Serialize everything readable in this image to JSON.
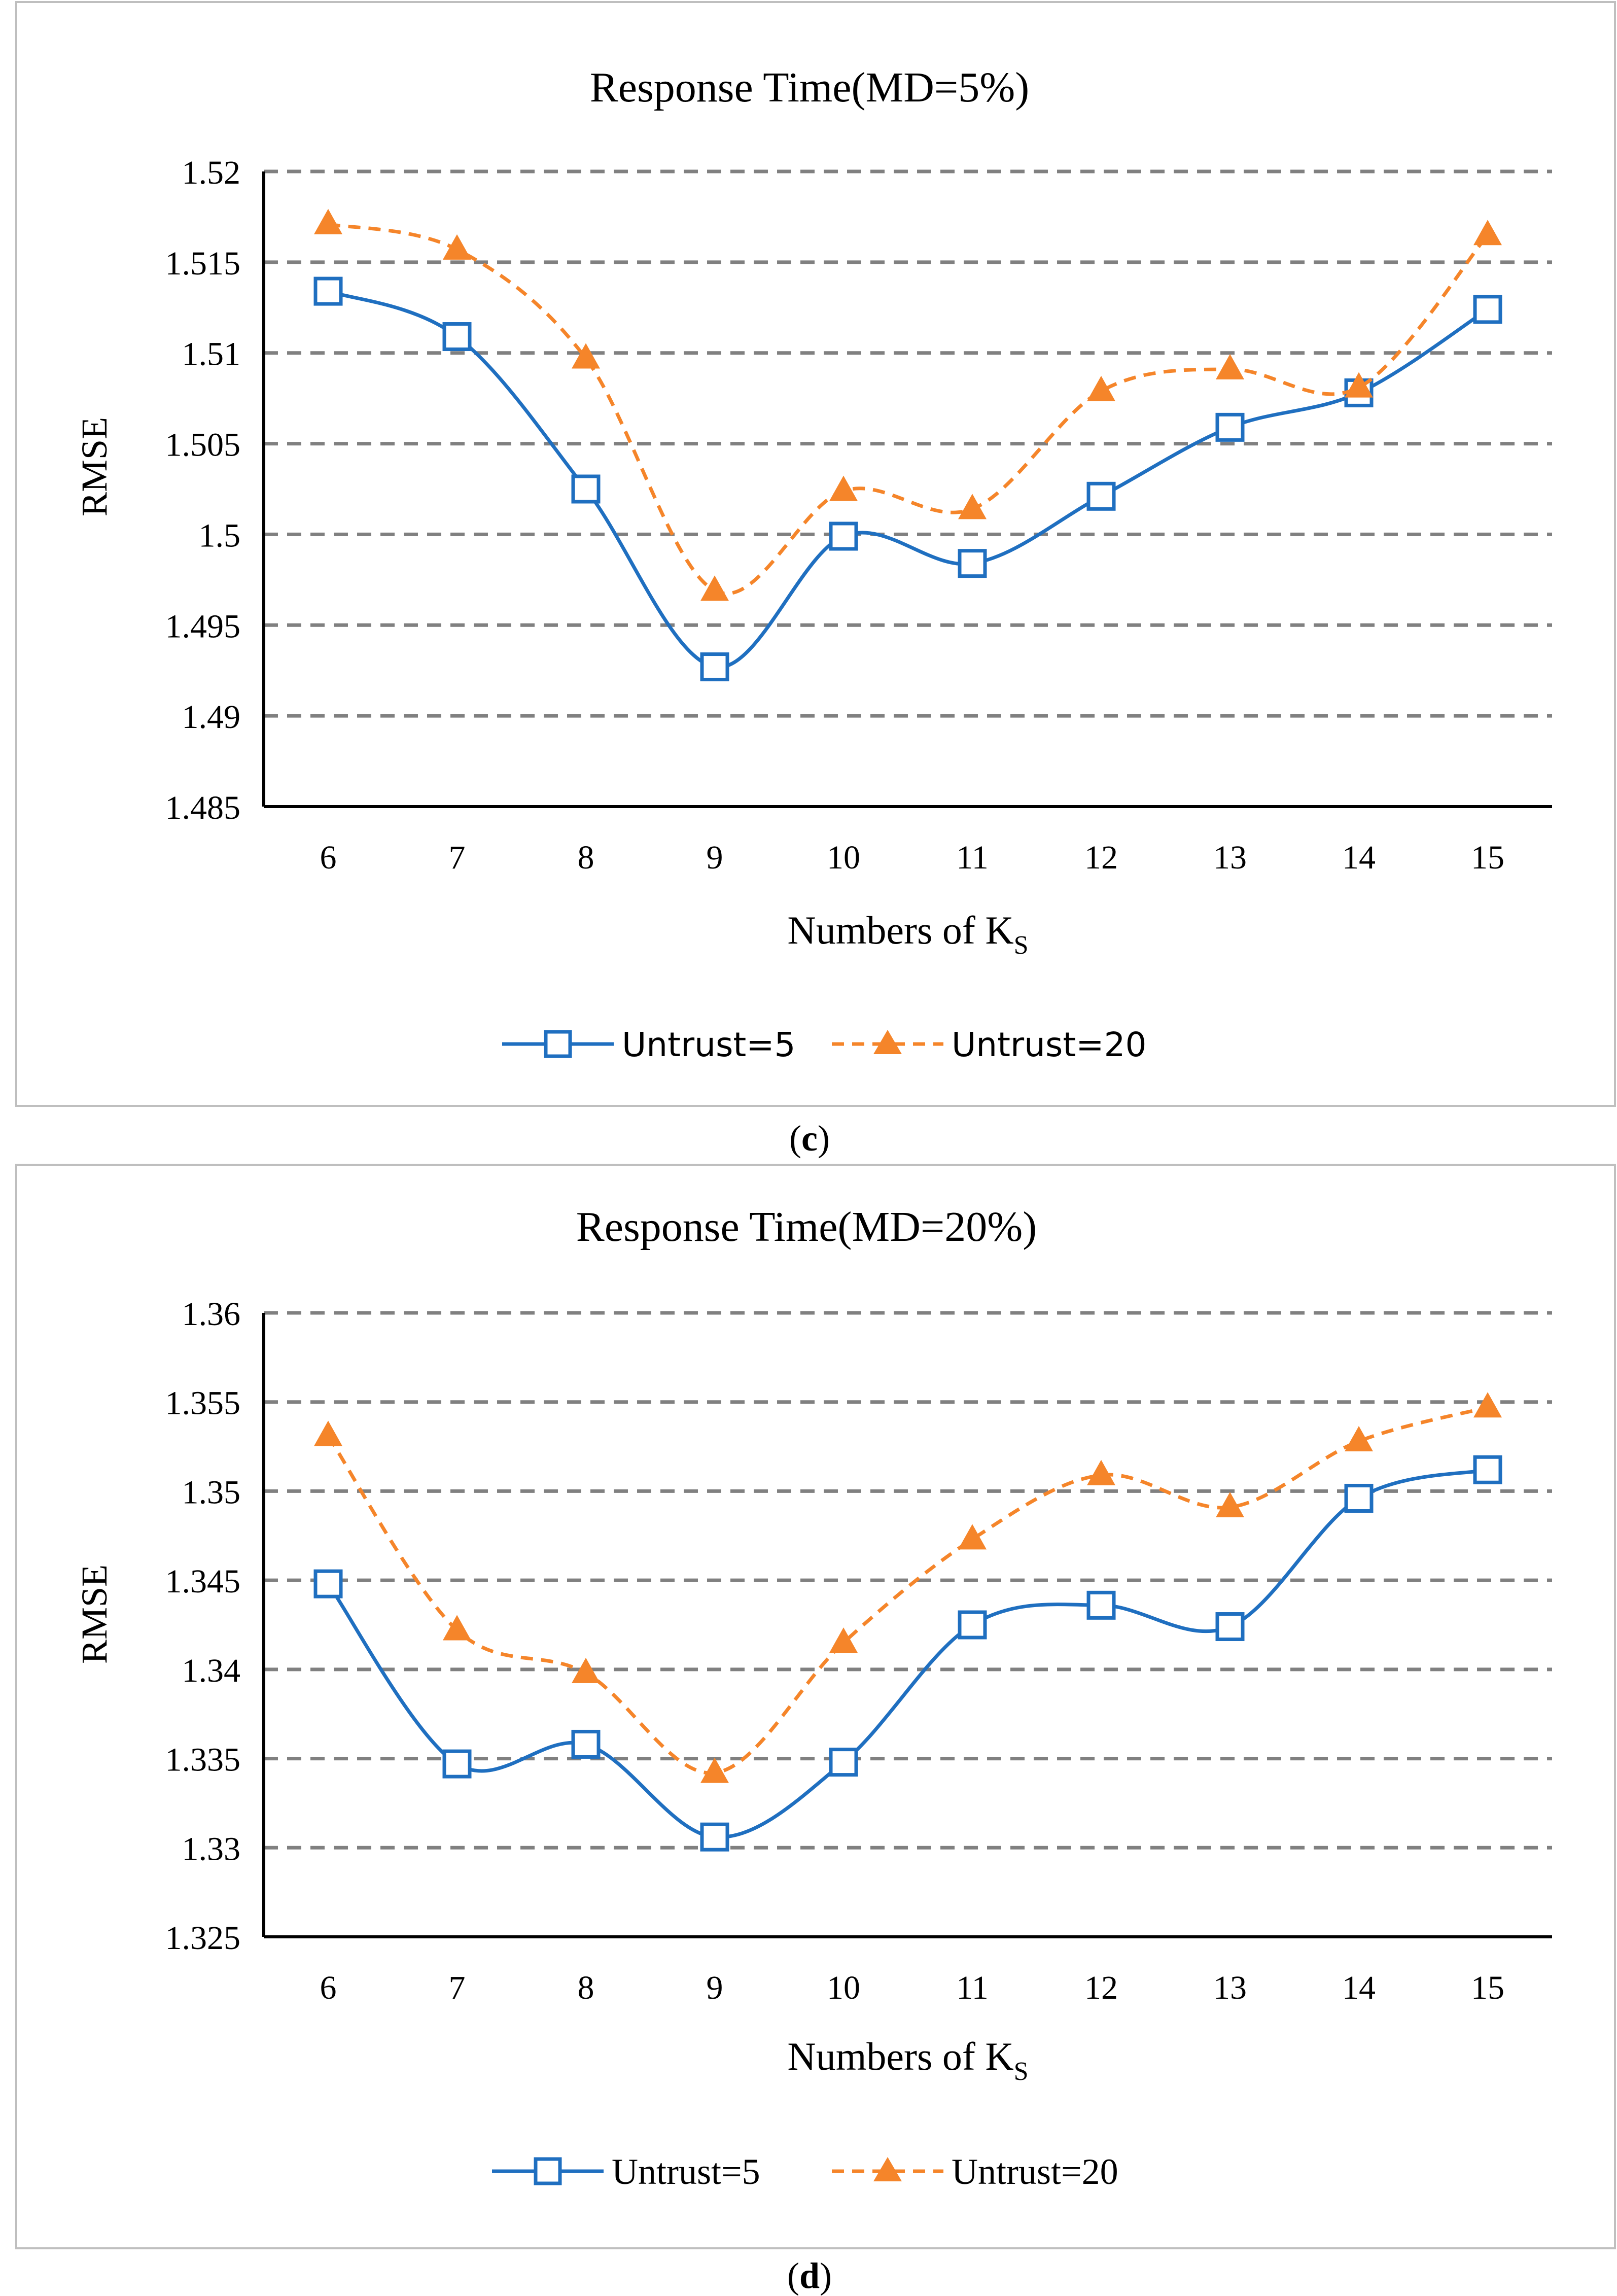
{
  "colors": {
    "series1": "#1F6FC0",
    "series2": "#F5852A",
    "grid": "#808080",
    "frame": "#BFBFBF",
    "axis": "#000000"
  },
  "chart_data": [
    {
      "type": "line",
      "panel_label": "c",
      "title": "Response Time(MD=5%)",
      "xlabel_main": "Numbers of K",
      "xlabel_sub": "S",
      "ylabel": "RMSE",
      "categories": [
        "6",
        "7",
        "8",
        "9",
        "10",
        "11",
        "12",
        "13",
        "14",
        "15"
      ],
      "ylim": [
        1.485,
        1.52
      ],
      "yticks": [
        "1.485",
        "1.49",
        "1.495",
        "1.5",
        "1.505",
        "1.51",
        "1.515",
        "1.52"
      ],
      "ytick_values": [
        1.485,
        1.49,
        1.495,
        1.5,
        1.505,
        1.51,
        1.515,
        1.52
      ],
      "grid": "dashed horizontal",
      "legend_position": "bottom",
      "series": [
        {
          "name": "Untrust=5",
          "marker": "square",
          "line": "solid",
          "color": "#1F6FC0",
          "values": [
            1.5134,
            1.5109,
            1.5025,
            1.4927,
            1.4999,
            1.4984,
            1.5021,
            1.5059,
            1.5078,
            1.5124
          ]
        },
        {
          "name": "Untrust=20",
          "marker": "triangle",
          "line": "dashed",
          "color": "#F5852A",
          "values": [
            1.5171,
            1.5157,
            1.5097,
            1.4969,
            1.5024,
            1.5014,
            1.5079,
            1.5091,
            1.5081,
            1.5165
          ]
        }
      ]
    },
    {
      "type": "line",
      "panel_label": "d",
      "title": "Response Time(MD=20%)",
      "xlabel_main": "Numbers of K",
      "xlabel_sub": "S",
      "ylabel": "RMSE",
      "categories": [
        "6",
        "7",
        "8",
        "9",
        "10",
        "11",
        "12",
        "13",
        "14",
        "15"
      ],
      "ylim": [
        1.325,
        1.36
      ],
      "yticks": [
        "1.325",
        "1.33",
        "1.335",
        "1.34",
        "1.345",
        "1.35",
        "1.355",
        "1.36"
      ],
      "ytick_values": [
        1.325,
        1.33,
        1.335,
        1.34,
        1.345,
        1.35,
        1.355,
        1.36
      ],
      "grid": "dashed horizontal",
      "legend_position": "bottom",
      "series": [
        {
          "name": "Untrust=5",
          "marker": "square",
          "line": "solid",
          "color": "#1F6FC0",
          "values": [
            1.3448,
            1.3347,
            1.3358,
            1.3306,
            1.3348,
            1.3425,
            1.3436,
            1.3424,
            1.3496,
            1.3512
          ]
        },
        {
          "name": "Untrust=20",
          "marker": "triangle",
          "line": "dashed",
          "color": "#F5852A",
          "values": [
            1.3531,
            1.3422,
            1.3398,
            1.3342,
            1.3415,
            1.3473,
            1.3509,
            1.3491,
            1.3528,
            1.3547
          ]
        }
      ]
    }
  ]
}
